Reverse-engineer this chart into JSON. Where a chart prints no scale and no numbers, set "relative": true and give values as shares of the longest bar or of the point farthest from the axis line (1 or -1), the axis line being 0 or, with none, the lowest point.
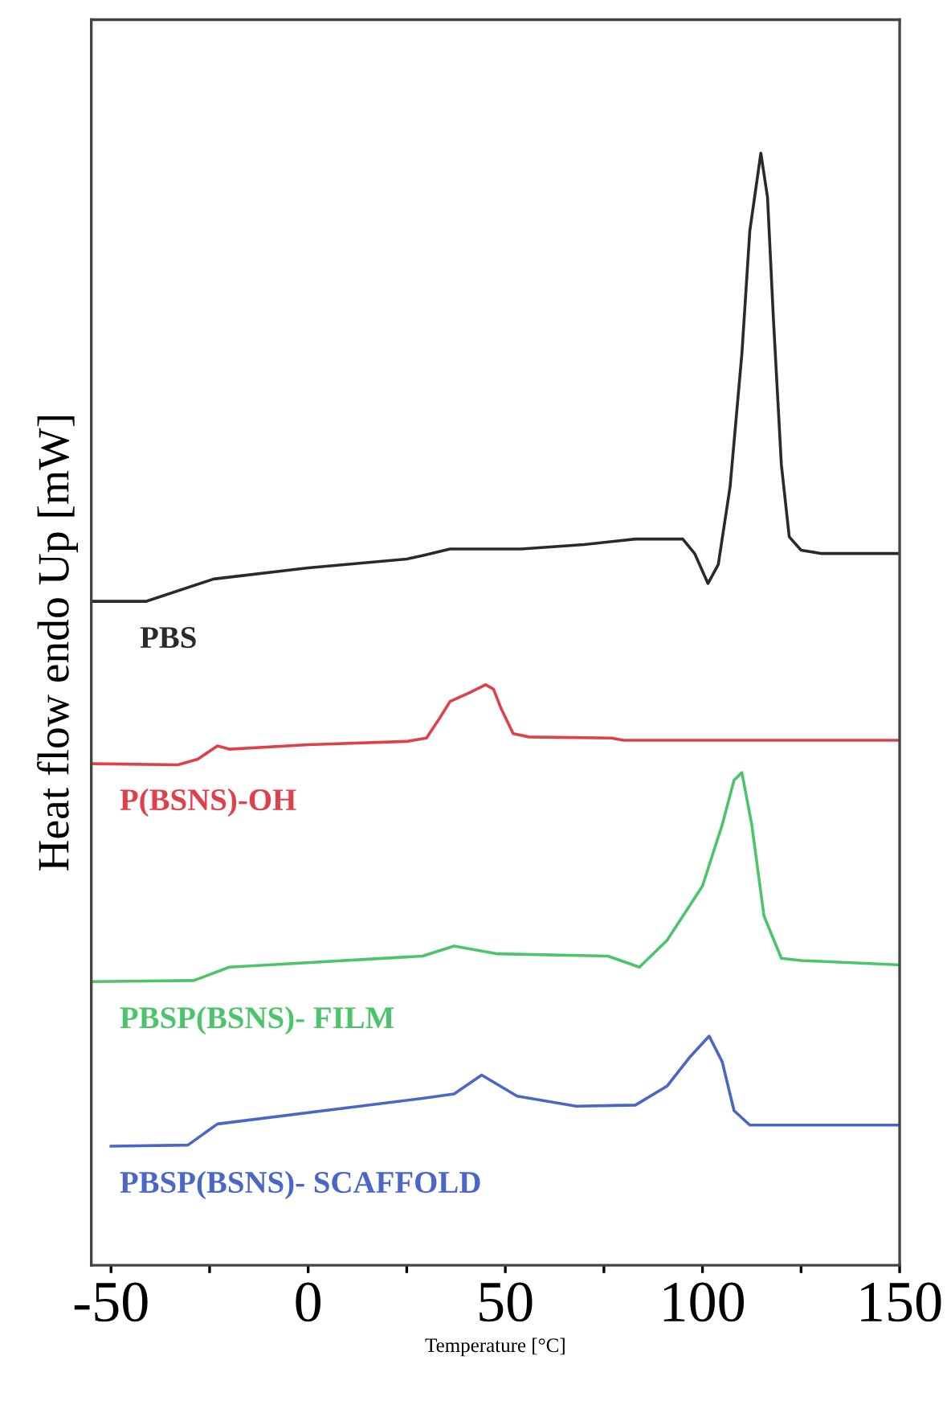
{
  "chart_data": {
    "type": "line",
    "relative": true,
    "xlabel": "Temperature [°C]",
    "ylabel": "Heat flow endo Up [mW]",
    "xlim": [
      -55,
      150
    ],
    "xticks": [
      -50,
      {
        "value": -25,
        "label": null
      },
      0,
      {
        "value": 25,
        "label": null
      },
      50,
      {
        "value": 75,
        "label": null
      },
      100,
      {
        "value": 125,
        "label": null
      },
      150
    ],
    "grid": false,
    "legend": false,
    "marker": "none",
    "line_style": "solid",
    "tick_labels": "x",
    "series": [
      {
        "name": "PBS",
        "color": "#2a2a2a",
        "x": [
          -55,
          -41,
          -24,
          0,
          25,
          29,
          36,
          54,
          70,
          83,
          95,
          98,
          101.4,
          104,
          107,
          110,
          112,
          114.8,
          116.5,
          118,
          120,
          122,
          125,
          130,
          150
        ],
        "values": [
          0.597,
          0.597,
          0.617,
          0.627,
          0.635,
          0.638,
          0.644,
          0.644,
          0.648,
          0.653,
          0.653,
          0.64,
          0.613,
          0.63,
          0.7,
          0.82,
          0.93,
          1.0,
          0.96,
          0.85,
          0.72,
          0.655,
          0.643,
          0.64,
          0.64
        ]
      },
      {
        "name": "P(BSNS)-OH",
        "color": "#e0404a",
        "x": [
          -55,
          -33,
          -28,
          -23,
          -20,
          0,
          25,
          30,
          33,
          36,
          41,
          45,
          47,
          49,
          52,
          56,
          77,
          80,
          150
        ],
        "values": [
          0.451,
          0.45,
          0.455,
          0.467,
          0.464,
          0.468,
          0.471,
          0.474,
          0.49,
          0.507,
          0.515,
          0.522,
          0.518,
          0.5,
          0.478,
          0.475,
          0.474,
          0.472,
          0.472
        ]
      },
      {
        "name": "PBSP(BSNS)- FILM",
        "color": "#4cc46a",
        "x": [
          -55,
          -29,
          -20,
          29,
          37,
          48,
          76,
          84,
          91,
          100,
          105,
          108,
          110,
          112.5,
          115.6,
          120,
          125,
          150
        ],
        "values": [
          0.255,
          0.256,
          0.268,
          0.278,
          0.287,
          0.28,
          0.278,
          0.268,
          0.292,
          0.341,
          0.396,
          0.436,
          0.443,
          0.396,
          0.314,
          0.276,
          0.274,
          0.27
        ]
      },
      {
        "name": "PBSP(BSNS)- SCAFFOLD",
        "color": "#4a66c8",
        "x": [
          -50,
          -30.5,
          -23,
          29,
          37,
          44,
          53,
          68,
          83,
          91,
          97,
          101.7,
          105,
          108,
          112,
          150
        ],
        "values": [
          0.107,
          0.108,
          0.127,
          0.15,
          0.154,
          0.171,
          0.152,
          0.143,
          0.144,
          0.161,
          0.188,
          0.206,
          0.183,
          0.139,
          0.126,
          0.126
        ]
      }
    ]
  }
}
